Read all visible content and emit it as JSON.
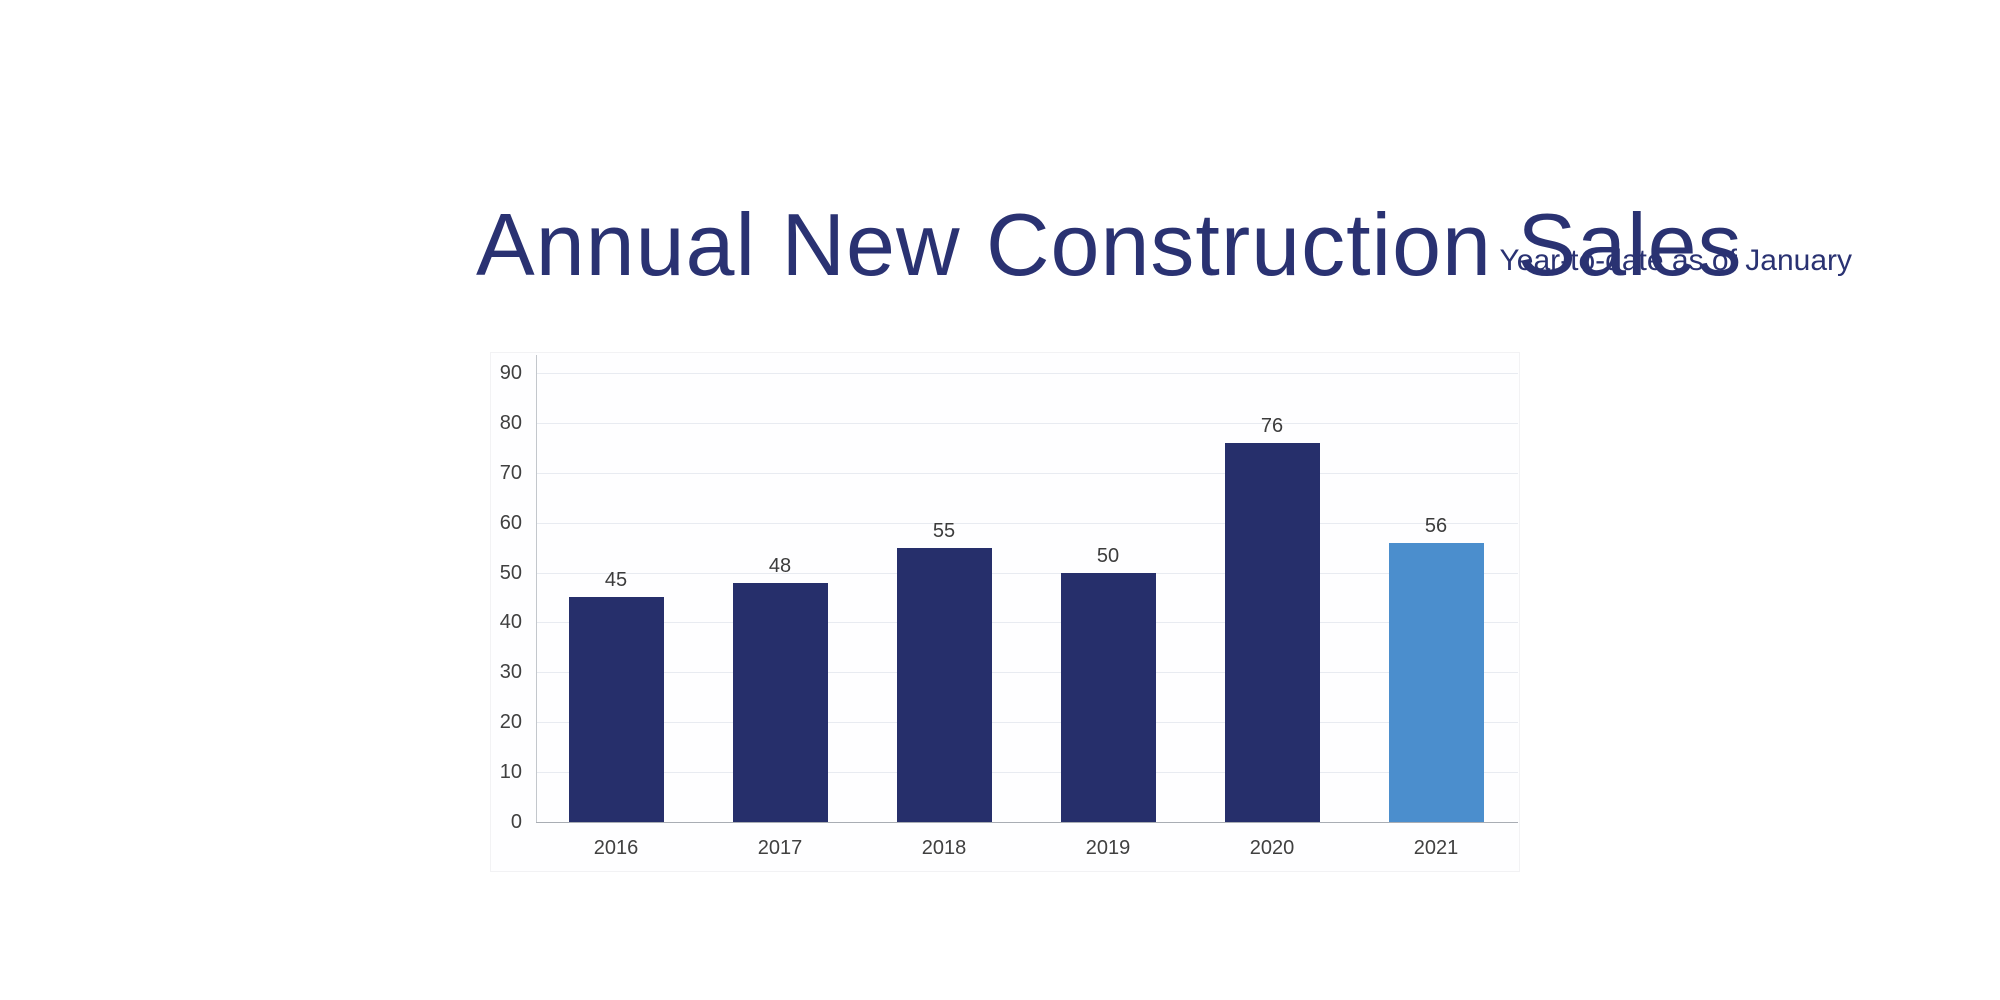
{
  "header": {
    "title": "Annual New Construction Sales",
    "subtitle": "Year-to-date as of January",
    "title_color": "#2a3272",
    "subtitle_color": "#2a3272"
  },
  "chart_data": {
    "type": "bar",
    "title": "Annual New Construction Sales",
    "subtitle": "Year-to-date as of January",
    "categories": [
      "2016",
      "2017",
      "2018",
      "2019",
      "2020",
      "2021"
    ],
    "values": [
      45,
      48,
      55,
      50,
      76,
      56
    ],
    "data_labels": [
      "45",
      "48",
      "55",
      "50",
      "76",
      "56"
    ],
    "bar_colors": [
      "#262f6b",
      "#262f6b",
      "#262f6b",
      "#262f6b",
      "#262f6b",
      "#4b8ecd"
    ],
    "highlight_category": "2021",
    "xlabel": "",
    "ylabel": "",
    "ylim": [
      0,
      90
    ],
    "yticks": [
      0,
      10,
      20,
      30,
      40,
      50,
      60,
      70,
      80,
      90
    ],
    "grid": true,
    "legend": "none",
    "colors": {
      "bar_default": "#262f6b",
      "bar_highlight": "#4b8ecd",
      "gridline": "#e8ebf1",
      "baseline": "#a9adb4",
      "y_axis_line": "#c3c7cc",
      "tick_label": "#404040",
      "value_label": "#3c3c3c"
    }
  }
}
